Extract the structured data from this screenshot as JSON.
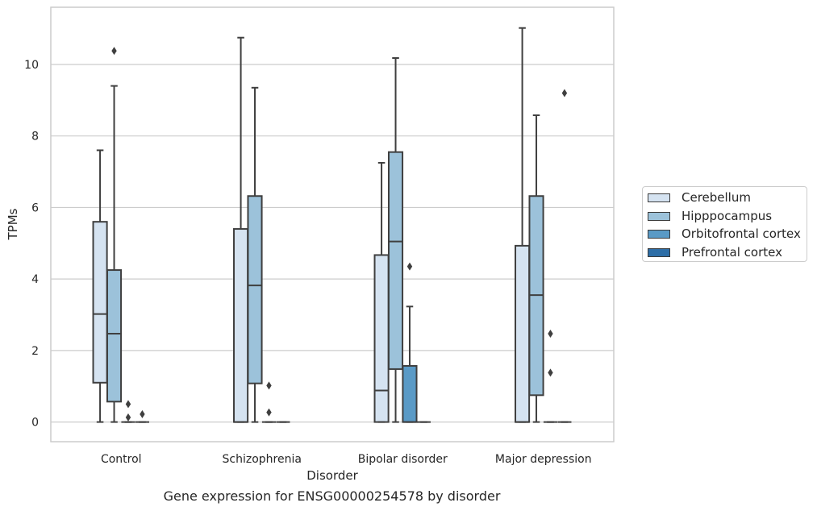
{
  "chart_data": {
    "type": "box",
    "title": "",
    "caption": "Gene expression for ENSG00000254578 by disorder",
    "xlabel": "Disorder",
    "ylabel": "TPMs",
    "ylim": [
      -0.55,
      11.6
    ],
    "yticks": [
      0,
      2,
      4,
      6,
      8,
      10
    ],
    "grid": "horizontal",
    "legend_position": "right",
    "categories": [
      "Control",
      "Schizophrenia",
      "Bipolar disorder",
      "Major depression"
    ],
    "series": [
      {
        "name": "Cerebellum",
        "color": "#d5e3f1",
        "boxes": [
          {
            "whislo": 0,
            "q1": 1.1,
            "med": 3.02,
            "q3": 5.6,
            "whishi": 7.6,
            "fliers": []
          },
          {
            "whislo": 0,
            "q1": 0,
            "med": 0,
            "q3": 5.4,
            "whishi": 10.75,
            "fliers": []
          },
          {
            "whislo": 0,
            "q1": 0,
            "med": 0.88,
            "q3": 4.67,
            "whishi": 7.25,
            "fliers": []
          },
          {
            "whislo": 0,
            "q1": 0,
            "med": 0,
            "q3": 4.93,
            "whishi": 11.02,
            "fliers": []
          }
        ]
      },
      {
        "name": "Hipppocampus",
        "color": "#9cc2da",
        "boxes": [
          {
            "whislo": 0,
            "q1": 0.57,
            "med": 2.47,
            "q3": 4.25,
            "whishi": 9.4,
            "fliers": [
              10.38
            ]
          },
          {
            "whislo": 0,
            "q1": 1.08,
            "med": 3.82,
            "q3": 6.32,
            "whishi": 9.35,
            "fliers": []
          },
          {
            "whislo": 0,
            "q1": 1.48,
            "med": 5.05,
            "q3": 7.55,
            "whishi": 10.18,
            "fliers": []
          },
          {
            "whislo": 0,
            "q1": 0.75,
            "med": 3.55,
            "q3": 6.32,
            "whishi": 8.58,
            "fliers": []
          }
        ]
      },
      {
        "name": "Orbitofrontal cortex",
        "color": "#5a9ac6",
        "boxes": [
          {
            "whislo": 0,
            "q1": 0,
            "med": 0,
            "q3": 0,
            "whishi": 0,
            "fliers": [
              0.5,
              0.13
            ]
          },
          {
            "whislo": 0,
            "q1": 0,
            "med": 0,
            "q3": 0,
            "whishi": 0,
            "fliers": [
              1.02,
              0.27
            ]
          },
          {
            "whislo": 0,
            "q1": 0,
            "med": 0,
            "q3": 1.57,
            "whishi": 3.23,
            "fliers": [
              4.35
            ]
          },
          {
            "whislo": 0,
            "q1": 0,
            "med": 0,
            "q3": 0,
            "whishi": 0,
            "fliers": [
              2.47,
              1.38
            ]
          }
        ]
      },
      {
        "name": "Prefrontal cortex",
        "color": "#2d6ea7",
        "boxes": [
          {
            "whislo": 0,
            "q1": 0,
            "med": 0,
            "q3": 0,
            "whishi": 0,
            "fliers": [
              0.22
            ]
          },
          {
            "whislo": 0,
            "q1": 0,
            "med": 0,
            "q3": 0,
            "whishi": 0,
            "fliers": []
          },
          {
            "whislo": 0,
            "q1": 0,
            "med": 0,
            "q3": 0,
            "whishi": 0,
            "fliers": []
          },
          {
            "whislo": 0,
            "q1": 0,
            "med": 0,
            "q3": 0,
            "whishi": 0,
            "fliers": [
              9.2
            ]
          }
        ]
      }
    ]
  }
}
